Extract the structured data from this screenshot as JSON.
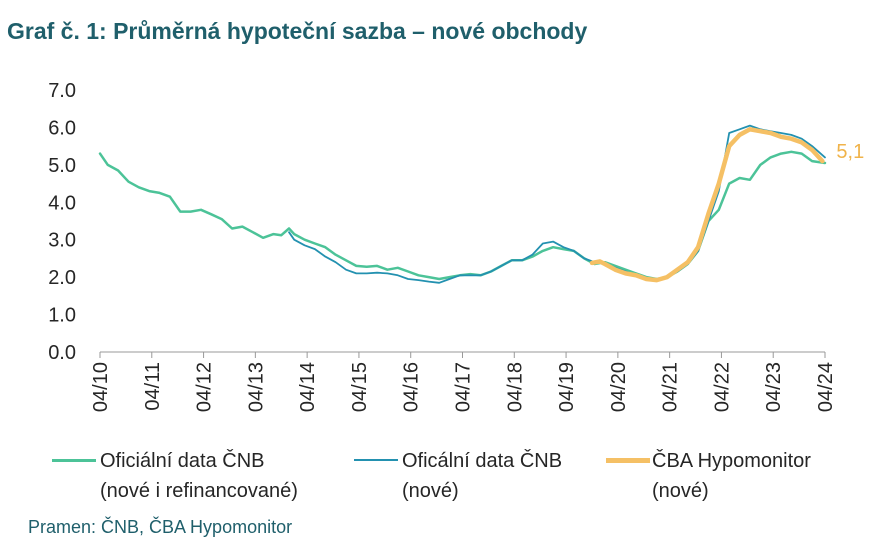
{
  "title": "Graf č. 1: Průměrná hypoteční sazba – nové obchody",
  "source": "Pramen: ČNB, ČBA Hypomonitor",
  "legend": [
    {
      "line1": "Oficiální data ČNB",
      "line2": "(nové i refinancované)",
      "color": "#4cc398"
    },
    {
      "line1": "Oficální data ČNB",
      "line2": "(nové)",
      "color": "#2391b0"
    },
    {
      "line1": "ČBA Hypomonitor",
      "line2": "(nové)",
      "color": "#f5c065"
    }
  ],
  "chart_data": {
    "type": "line",
    "y_ticks": [
      "0.0",
      "1.0",
      "2.0",
      "3.0",
      "4.0",
      "5.0",
      "6.0",
      "7.0"
    ],
    "ylim": [
      0,
      7
    ],
    "x_ticks": [
      "04/10",
      "04/11",
      "04/12",
      "04/13",
      "04/14",
      "04/15",
      "04/16",
      "04/17",
      "04/18",
      "04/19",
      "04/20",
      "04/21",
      "04/22",
      "04/23",
      "04/24"
    ],
    "end_label": "5,1",
    "series": [
      {
        "name": "Oficiální data ČNB (nové i refinancované)",
        "color": "#4cc398",
        "x": [
          2010.25,
          2010.4,
          2010.6,
          2010.8,
          2011.0,
          2011.2,
          2011.4,
          2011.6,
          2011.8,
          2012.0,
          2012.2,
          2012.4,
          2012.6,
          2012.8,
          2013.0,
          2013.2,
          2013.4,
          2013.6,
          2013.75,
          2013.9,
          2014.0,
          2014.2,
          2014.4,
          2014.6,
          2014.8,
          2015.0,
          2015.2,
          2015.4,
          2015.6,
          2015.8,
          2016.0,
          2016.2,
          2016.4,
          2016.6,
          2016.8,
          2017.0,
          2017.2,
          2017.4,
          2017.6,
          2017.8,
          2018.0,
          2018.2,
          2018.4,
          2018.6,
          2018.8,
          2019.0,
          2019.2,
          2019.4,
          2019.6,
          2019.8,
          2020.0,
          2020.2,
          2020.4,
          2020.6,
          2020.8,
          2021.0,
          2021.2,
          2021.4,
          2021.6,
          2021.8,
          2022.0,
          2022.2,
          2022.4,
          2022.6,
          2022.8,
          2023.0,
          2023.2,
          2023.4,
          2023.6,
          2023.8,
          2024.0,
          2024.25
        ],
        "y": [
          5.3,
          5.0,
          4.85,
          4.55,
          4.4,
          4.3,
          4.25,
          4.15,
          3.75,
          3.75,
          3.8,
          3.68,
          3.55,
          3.3,
          3.35,
          3.2,
          3.05,
          3.15,
          3.12,
          3.3,
          3.15,
          3.0,
          2.9,
          2.8,
          2.6,
          2.45,
          2.3,
          2.28,
          2.3,
          2.2,
          2.25,
          2.15,
          2.05,
          2.0,
          1.95,
          2.0,
          2.05,
          2.08,
          2.05,
          2.15,
          2.3,
          2.45,
          2.45,
          2.55,
          2.7,
          2.8,
          2.75,
          2.7,
          2.5,
          2.35,
          2.4,
          2.3,
          2.2,
          2.1,
          2.0,
          1.95,
          2.0,
          2.15,
          2.35,
          2.7,
          3.5,
          3.8,
          4.5,
          4.65,
          4.6,
          5.0,
          5.2,
          5.3,
          5.35,
          5.3,
          5.1,
          5.05
        ]
      },
      {
        "name": "Oficální data ČNB (nové)",
        "color": "#2391b0",
        "x": [
          2013.9,
          2014.0,
          2014.2,
          2014.4,
          2014.6,
          2014.8,
          2015.0,
          2015.2,
          2015.4,
          2015.6,
          2015.8,
          2016.0,
          2016.2,
          2016.4,
          2016.6,
          2016.8,
          2017.0,
          2017.2,
          2017.4,
          2017.6,
          2017.8,
          2018.0,
          2018.2,
          2018.4,
          2018.6,
          2018.8,
          2019.0,
          2019.2,
          2019.4,
          2019.6,
          2019.8,
          2020.0,
          2020.2,
          2020.4,
          2020.6,
          2020.8,
          2021.0,
          2021.2,
          2021.4,
          2021.6,
          2021.8,
          2022.0,
          2022.2,
          2022.4,
          2022.6,
          2022.8,
          2023.0,
          2023.2,
          2023.4,
          2023.6,
          2023.8,
          2024.0,
          2024.25
        ],
        "y": [
          3.2,
          3.0,
          2.85,
          2.75,
          2.55,
          2.4,
          2.2,
          2.1,
          2.1,
          2.12,
          2.1,
          2.05,
          1.95,
          1.92,
          1.88,
          1.85,
          1.95,
          2.05,
          2.05,
          2.05,
          2.15,
          2.3,
          2.45,
          2.45,
          2.6,
          2.9,
          2.95,
          2.8,
          2.7,
          2.5,
          2.4,
          2.38,
          2.25,
          2.15,
          2.05,
          1.98,
          1.95,
          2.0,
          2.15,
          2.35,
          2.7,
          3.5,
          4.3,
          5.85,
          5.95,
          6.05,
          5.95,
          5.9,
          5.85,
          5.8,
          5.7,
          5.5,
          5.2
        ]
      },
      {
        "name": "ČBA Hypomonitor (nové)",
        "color": "#f5c065",
        "x": [
          2019.75,
          2019.9,
          2020.0,
          2020.2,
          2020.4,
          2020.6,
          2020.8,
          2021.0,
          2021.2,
          2021.4,
          2021.6,
          2021.8,
          2022.0,
          2022.2,
          2022.4,
          2022.6,
          2022.8,
          2023.0,
          2023.2,
          2023.4,
          2023.6,
          2023.8,
          2024.0,
          2024.2
        ],
        "y": [
          2.38,
          2.42,
          2.35,
          2.2,
          2.1,
          2.05,
          1.95,
          1.92,
          2.0,
          2.2,
          2.4,
          2.8,
          3.7,
          4.5,
          5.5,
          5.8,
          5.95,
          5.9,
          5.85,
          5.75,
          5.7,
          5.6,
          5.4,
          5.1
        ]
      }
    ]
  }
}
